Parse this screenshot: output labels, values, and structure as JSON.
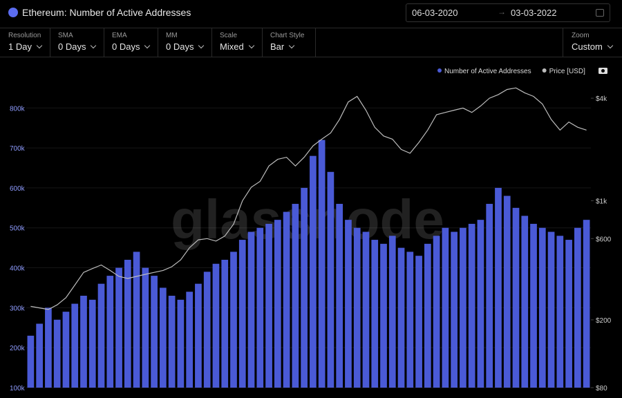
{
  "header": {
    "title": "Ethereum: Number of Active Addresses",
    "date_from": "06-03-2020",
    "date_to": "03-03-2022"
  },
  "controls": [
    {
      "label": "Resolution",
      "value": "1 Day"
    },
    {
      "label": "SMA",
      "value": "0 Days"
    },
    {
      "label": "EMA",
      "value": "0 Days"
    },
    {
      "label": "MM",
      "value": "0 Days"
    },
    {
      "label": "Scale",
      "value": "Mixed"
    },
    {
      "label": "Chart Style",
      "value": "Bar"
    }
  ],
  "zoom": {
    "label": "Zoom",
    "value": "Custom"
  },
  "chart_data": {
    "type": "bar",
    "watermark": "glassnode",
    "ylim": [
      100000,
      880000
    ],
    "yticks": [
      {
        "value": 100000,
        "label": "100k"
      },
      {
        "value": 200000,
        "label": "200k"
      },
      {
        "value": 300000,
        "label": "300k"
      },
      {
        "value": 400000,
        "label": "400k"
      },
      {
        "value": 500000,
        "label": "500k"
      },
      {
        "value": 600000,
        "label": "600k"
      },
      {
        "value": 700000,
        "label": "700k"
      },
      {
        "value": 800000,
        "label": "800k"
      }
    ],
    "y2lim": [
      80,
      5400
    ],
    "y2log": true,
    "y2ticks": [
      {
        "value": 80,
        "label": "$80"
      },
      {
        "value": 200,
        "label": "$200"
      },
      {
        "value": 600,
        "label": "$600"
      },
      {
        "value": 1000,
        "label": "$1k"
      },
      {
        "value": 4000,
        "label": "$4k"
      }
    ],
    "series": [
      {
        "name": "Number of Active Addresses",
        "color": "#4a5ad6",
        "values": [
          230000,
          260000,
          300000,
          270000,
          290000,
          310000,
          330000,
          320000,
          360000,
          380000,
          400000,
          420000,
          440000,
          400000,
          380000,
          350000,
          330000,
          320000,
          340000,
          360000,
          390000,
          410000,
          420000,
          440000,
          470000,
          490000,
          500000,
          510000,
          520000,
          540000,
          560000,
          600000,
          680000,
          720000,
          640000,
          560000,
          520000,
          500000,
          490000,
          470000,
          460000,
          480000,
          450000,
          440000,
          430000,
          460000,
          480000,
          500000,
          490000,
          500000,
          510000,
          520000,
          560000,
          600000,
          580000,
          550000,
          530000,
          510000,
          500000,
          490000,
          480000,
          470000,
          500000,
          520000
        ]
      },
      {
        "name": "Price [USD]",
        "color": "#bdbdbd",
        "type": "line",
        "axis": "y2",
        "values": [
          240,
          235,
          230,
          245,
          270,
          320,
          380,
          400,
          420,
          390,
          360,
          350,
          360,
          370,
          380,
          390,
          410,
          450,
          530,
          590,
          600,
          580,
          620,
          730,
          1000,
          1200,
          1300,
          1600,
          1750,
          1800,
          1600,
          1800,
          2100,
          2300,
          2500,
          3000,
          3800,
          4100,
          3400,
          2700,
          2400,
          2300,
          2000,
          1900,
          2200,
          2600,
          3200,
          3300,
          3400,
          3500,
          3300,
          3600,
          4000,
          4200,
          4500,
          4600,
          4300,
          4100,
          3700,
          3000,
          2600,
          2900,
          2700,
          2600
        ]
      }
    ]
  }
}
